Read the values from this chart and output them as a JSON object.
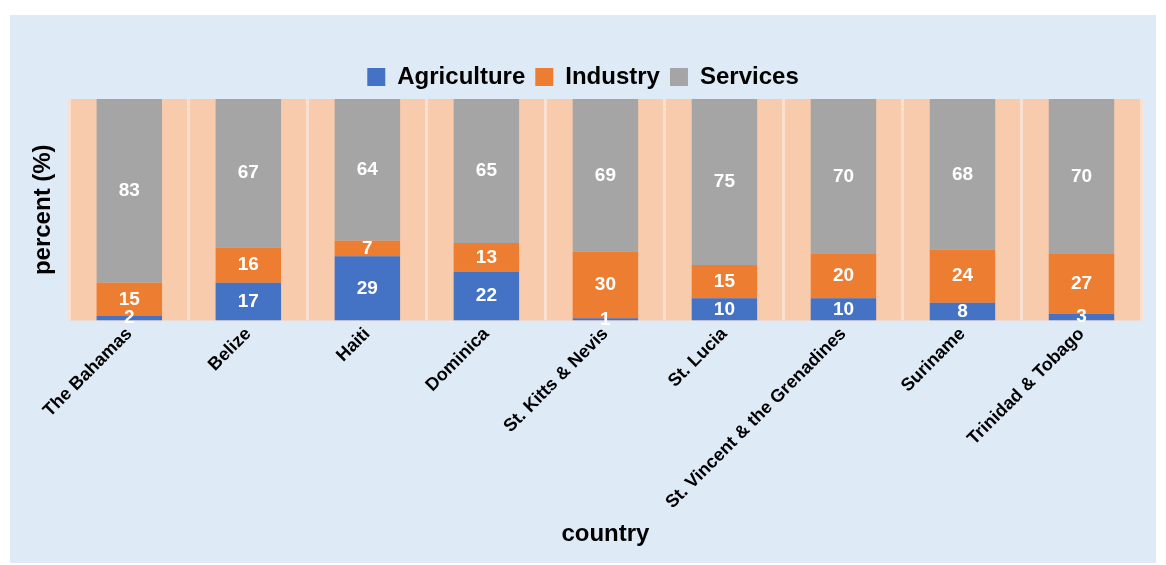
{
  "chart_data": {
    "type": "bar",
    "stacked": true,
    "xlabel": "country",
    "ylabel": "percent (%)",
    "categories": [
      "The Bahamas",
      "Belize",
      "Haiti",
      "Dominica",
      "St. Kitts & Nevis",
      "St. Lucia",
      "St. Vincent & the Grenadines",
      "Suriname",
      "Trinidad & Tobago"
    ],
    "series": [
      {
        "name": "Agriculture",
        "color": "#4472c4",
        "values": [
          2,
          17,
          29,
          22,
          1,
          10,
          10,
          8,
          3
        ]
      },
      {
        "name": "Industry",
        "color": "#ed7d31",
        "values": [
          15,
          16,
          7,
          13,
          30,
          15,
          20,
          24,
          27
        ]
      },
      {
        "name": "Services",
        "color": "#a5a5a5",
        "values": [
          83,
          67,
          64,
          65,
          69,
          75,
          70,
          68,
          70
        ]
      }
    ],
    "data_labels": true,
    "grid": "x",
    "legend": "top"
  }
}
